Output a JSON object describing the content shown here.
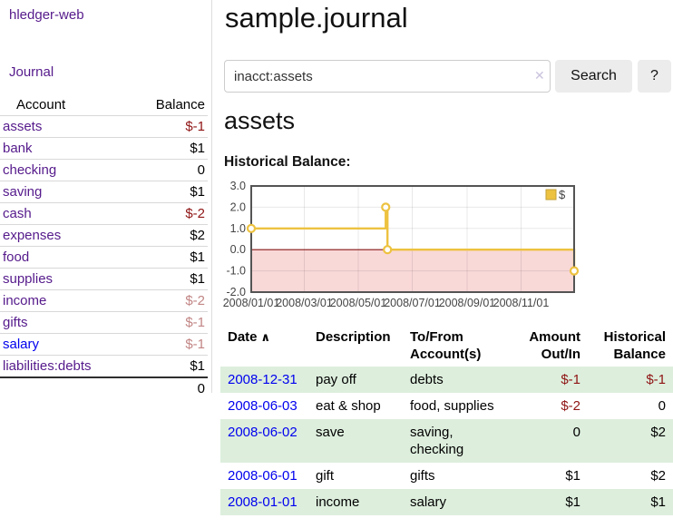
{
  "app": {
    "brand": "hledger-web"
  },
  "colors": {
    "link_purple": "#551a8b",
    "link_blue": "#0000ee",
    "negative_strong": "#8f1414",
    "negative_weak": "#c28585",
    "row_stripe_green": "#ddeedd",
    "series_gold": "#edc240",
    "button_gray": "#ececec"
  },
  "sidebar": {
    "journal_link": "Journal",
    "header": {
      "account": "Account",
      "balance": "Balance"
    },
    "accounts": [
      {
        "name": "assets",
        "balance": "$-1"
      },
      {
        "name": "bank",
        "balance": "$1"
      },
      {
        "name": "checking",
        "balance": "0"
      },
      {
        "name": "saving",
        "balance": "$1"
      },
      {
        "name": "cash",
        "balance": "$-2"
      },
      {
        "name": "expenses",
        "balance": "$2"
      },
      {
        "name": "food",
        "balance": "$1"
      },
      {
        "name": "supplies",
        "balance": "$1"
      },
      {
        "name": "income",
        "balance": "$-2"
      },
      {
        "name": "gifts",
        "balance": "$-1"
      },
      {
        "name": "salary",
        "balance": "$-1"
      },
      {
        "name": "liabilities:debts",
        "balance": "$1"
      }
    ],
    "total_balance": "0"
  },
  "main": {
    "title": "sample.journal",
    "search": {
      "value": "inacct:assets",
      "clear_icon": "✕",
      "button_label": "Search",
      "help_label": "?"
    },
    "account_heading": "assets",
    "section_label": "Historical Balance:"
  },
  "chart_data": {
    "type": "line",
    "step": true,
    "title": "Historical Balance of assets",
    "x_domain": [
      "2008-01-01",
      "2008-12-31"
    ],
    "y_domain": [
      -2,
      3
    ],
    "x_ticks": [
      {
        "date": "2008-01-01",
        "label": "2008/01/01"
      },
      {
        "date": "2008-03-01",
        "label": "2008/03/01"
      },
      {
        "date": "2008-05-01",
        "label": "2008/05/01"
      },
      {
        "date": "2008-07-01",
        "label": "2008/07/01"
      },
      {
        "date": "2008-09-01",
        "label": "2008/09/01"
      },
      {
        "date": "2008-11-01",
        "label": "2008/11/01"
      }
    ],
    "y_ticks": [
      {
        "value": 3,
        "label": "3.0"
      },
      {
        "value": 2,
        "label": "2.0"
      },
      {
        "value": 1,
        "label": "1.0"
      },
      {
        "value": 0,
        "label": "0.0"
      },
      {
        "value": -1,
        "label": "-1.0"
      },
      {
        "value": -2,
        "label": "-2.0"
      }
    ],
    "series": [
      {
        "name": "$",
        "color": "#edc240",
        "marker_fill": "#ffffff",
        "points": [
          {
            "date": "2008-01-01",
            "value": 1
          },
          {
            "date": "2008-06-01",
            "value": 2
          },
          {
            "date": "2008-06-03",
            "value": 0
          },
          {
            "date": "2008-12-31",
            "value": -1
          }
        ]
      }
    ],
    "legend": {
      "position": "top-right",
      "label": "$"
    },
    "grid": true,
    "grid_color": "rgba(0,0,0,0.09)",
    "border_color": "#545454",
    "zero_line_color": "#8b1a1a",
    "negative_region_color": "#f9d8d8",
    "tick_label_color": "#444444"
  },
  "transactions": {
    "sort_icon": "∧",
    "headers": {
      "date": "Date",
      "description": "Description",
      "tofrom": "To/From Account(s)",
      "amount": "Amount Out/In",
      "balance": "Historical Balance"
    },
    "rows": [
      {
        "date": "2008-12-31",
        "description": "pay off",
        "tofrom": "debts",
        "amount": "$-1",
        "balance": "$-1"
      },
      {
        "date": "2008-06-03",
        "description": "eat & shop",
        "tofrom": "food, supplies",
        "amount": "$-2",
        "balance": "0"
      },
      {
        "date": "2008-06-02",
        "description": "save",
        "tofrom": "saving, checking",
        "amount": "0",
        "balance": "$2"
      },
      {
        "date": "2008-06-01",
        "description": "gift",
        "tofrom": "gifts",
        "amount": "$1",
        "balance": "$2"
      },
      {
        "date": "2008-01-01",
        "description": "income",
        "tofrom": "salary",
        "amount": "$1",
        "balance": "$1"
      }
    ]
  }
}
